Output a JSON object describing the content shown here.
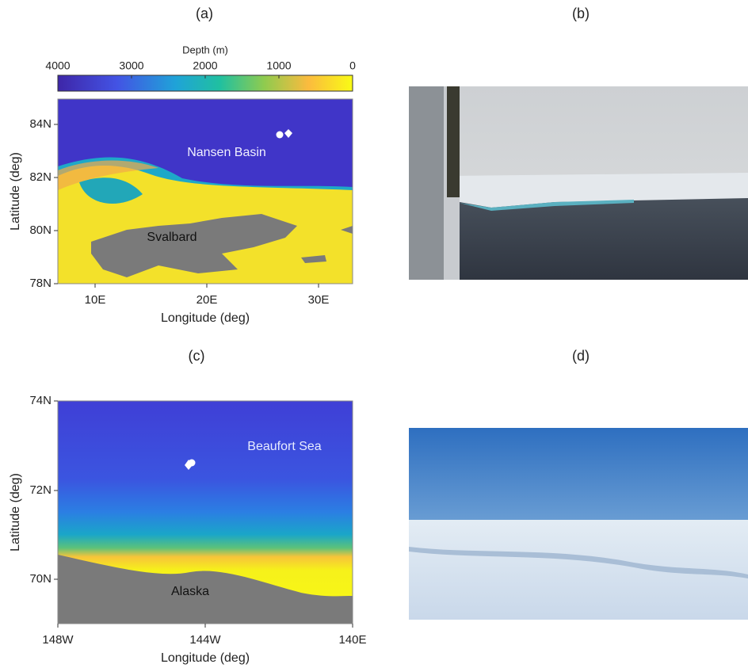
{
  "panels": [
    {
      "label": "(a)",
      "colorbar": {
        "title": "Depth (m)",
        "ticks": [
          4000,
          3000,
          2000,
          1000,
          0
        ],
        "lim": [
          4000,
          0
        ]
      },
      "yticks": [
        "84N",
        "82N",
        "80N",
        "78N"
      ],
      "xticks": [
        "10E",
        "20E",
        "30E"
      ],
      "xlabel": "Longitude (deg)",
      "ylabel": "Latitude (deg)",
      "places": [
        "Nansen Basin",
        "Svalbard"
      ]
    },
    {
      "label": "(b)"
    },
    {
      "label": "(c)",
      "yticks": [
        "74N",
        "72N",
        "70N"
      ],
      "xticks": [
        "148W",
        "144W",
        "140E"
      ],
      "xlabel": "Longitude (deg)",
      "ylabel": "Latitude (deg)",
      "places": [
        "Beaufort Sea",
        "Alaska"
      ]
    },
    {
      "label": "(d)"
    }
  ]
}
